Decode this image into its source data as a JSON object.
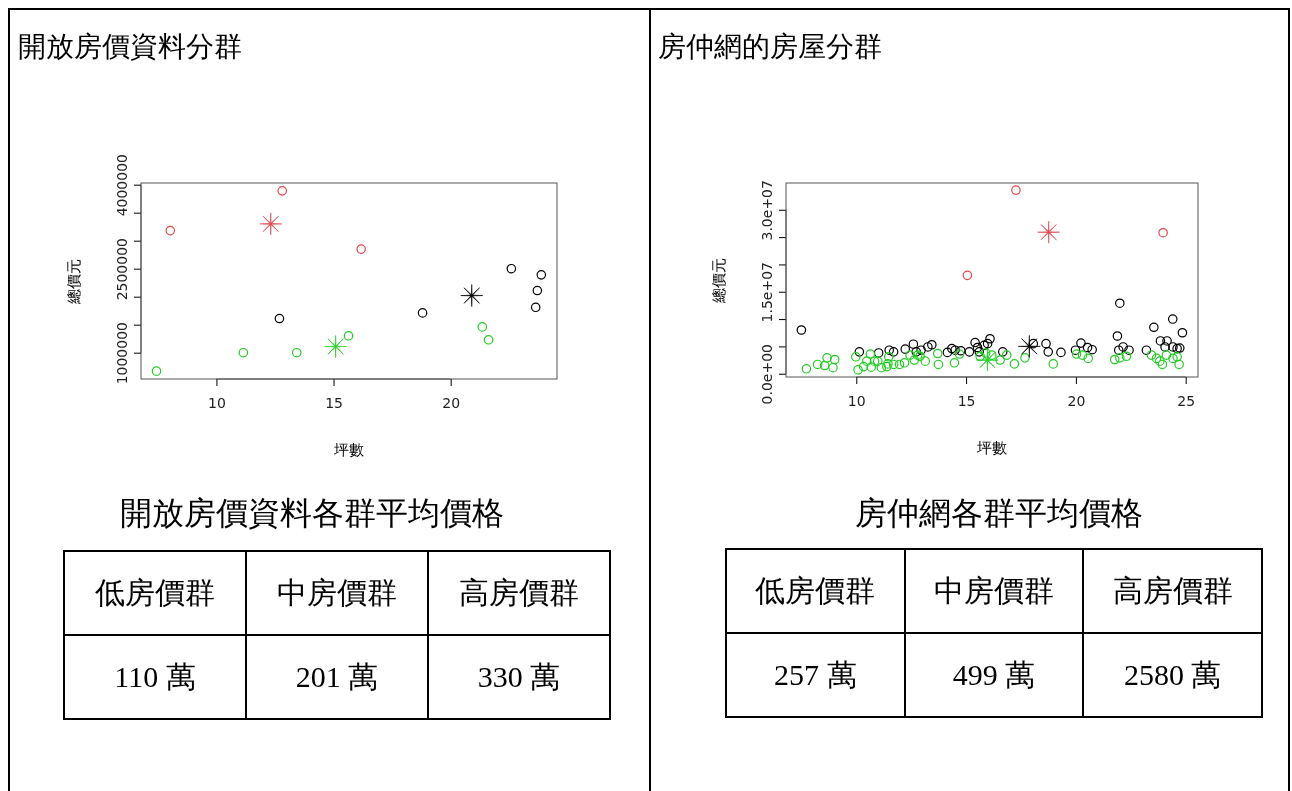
{
  "chart_data": [
    {
      "type": "scatter",
      "title": "開放房價資料分群",
      "xlabel": "坪數",
      "ylabel": "總價元",
      "xlim": [
        6.78,
        24.54
      ],
      "ylim": [
        530000,
        4030000
      ],
      "xticks": [
        10,
        15,
        20
      ],
      "yticks": [
        {
          "value": 1000000,
          "label": "1000000"
        },
        {
          "value": 1500000,
          "label": null
        },
        {
          "value": 2000000,
          "label": null
        },
        {
          "value": 2500000,
          "label": "2500000"
        },
        {
          "value": 3000000,
          "label": null
        },
        {
          "value": 3500000,
          "label": null
        },
        {
          "value": 4000000,
          "label": "4000000"
        }
      ],
      "series": [
        {
          "color": "#e0474c",
          "marker": "circle",
          "x": [
            8.03,
            12.81,
            16.18
          ],
          "values": [
            3180000,
            3890000,
            2850000
          ]
        },
        {
          "color": "#000000",
          "marker": "circle",
          "x": [
            12.69,
            18.8,
            22.59,
            23.87,
            23.7,
            23.63
          ],
          "values": [
            1610000,
            1710000,
            2500000,
            2390000,
            2110000,
            1810000
          ]
        },
        {
          "color": "#22cc22",
          "marker": "circle",
          "x": [
            7.44,
            11.15,
            13.43,
            15.64,
            21.35,
            21.62
          ],
          "values": [
            670000,
            1000000,
            1000000,
            1300000,
            1460000,
            1230000
          ]
        },
        {
          "color": "#e0474c",
          "marker": "star",
          "x": [
            12.32
          ],
          "values": [
            3300000
          ]
        },
        {
          "color": "#000000",
          "marker": "star",
          "x": [
            20.9
          ],
          "values": [
            2020000
          ]
        },
        {
          "color": "#22cc22",
          "marker": "star",
          "x": [
            15.09
          ],
          "values": [
            1110000
          ]
        }
      ]
    },
    {
      "type": "other",
      "title": "開放房價資料各群平均價格",
      "categories": [
        "低房價群",
        "中房價群",
        "高房價群"
      ],
      "annotations": [
        "110 萬",
        "201 萬",
        "330 萬"
      ]
    },
    {
      "type": "scatter",
      "title": "房仲網的房屋分群",
      "xlabel": "坪數",
      "ylabel": "總價元",
      "xlim": [
        6.8,
        25.56
      ],
      "ylim": [
        -600000,
        34900000
      ],
      "xticks": [
        10,
        15,
        20,
        25
      ],
      "yticks": [
        {
          "value": 0,
          "label": "0.0e+00"
        },
        {
          "value": 5000000,
          "label": null
        },
        {
          "value": 10000000,
          "label": null
        },
        {
          "value": 15000000,
          "label": "1.5e+07"
        },
        {
          "value": 20000000,
          "label": null
        },
        {
          "value": 25000000,
          "label": null
        },
        {
          "value": 30000000,
          "label": "3.0e+07"
        }
      ],
      "series": [
        {
          "color": "#e0474c",
          "marker": "circle",
          "x": [
            17.27,
            15.06,
            23.97
          ],
          "values": [
            33600000,
            18000000,
            25800000
          ]
        },
        {
          "color": "#000000",
          "marker": "circle",
          "x": [
            7.5,
            10.14,
            11.02,
            11.5,
            11.7,
            12.23,
            12.6,
            12.73,
            12.95,
            13.26,
            13.44,
            14.15,
            14.35,
            14.5,
            14.76,
            15.15,
            15.41,
            15.52,
            15.6,
            15.82,
            15.98,
            16.09,
            16.67,
            18.06,
            18.64,
            18.74,
            19.32,
            19.98,
            20.23,
            20.53,
            20.74,
            22.0,
            21.89,
            21.95,
            22.15,
            22.42,
            23.21,
            23.55,
            23.85,
            24.15,
            24.06,
            24.41,
            24.42,
            24.61,
            24.73,
            24.85
          ],
          "values": [
            8000000,
            4000000,
            3800000,
            4300000,
            4000000,
            4500000,
            5400000,
            4000000,
            4300000,
            4900000,
            5300000,
            3900000,
            4600000,
            4300000,
            4200000,
            4000000,
            5700000,
            4800000,
            4000000,
            5200000,
            5500000,
            6400000,
            4000000,
            5500000,
            5500000,
            4000000,
            3900000,
            4300000,
            5600000,
            4800000,
            4400000,
            12900000,
            6900000,
            4300000,
            4900000,
            4300000,
            4300000,
            8500000,
            6000000,
            6000000,
            4900000,
            10000000,
            4900000,
            4600000,
            4700000,
            7500000
          ]
        },
        {
          "color": "#22cc22",
          "marker": "circle",
          "x": [
            7.73,
            8.24,
            8.56,
            8.67,
            8.94,
            9.02,
            9.98,
            10.08,
            10.33,
            10.48,
            10.64,
            10.68,
            10.83,
            10.98,
            11.14,
            11.39,
            11.44,
            11.48,
            11.7,
            11.97,
            12.2,
            12.45,
            12.64,
            12.8,
            12.9,
            13.14,
            13.71,
            13.74,
            14.47,
            14.7,
            15.64,
            15.89,
            16.17,
            16.55,
            16.85,
            17.2,
            17.68,
            18.97,
            20.03,
            20.3,
            20.56,
            21.77,
            22.0,
            22.3,
            23.44,
            23.67,
            23.82,
            23.94,
            24.12,
            24.42,
            24.61,
            24.7
          ],
          "values": [
            900000,
            1700000,
            1500000,
            2900000,
            1100000,
            2600000,
            3100000,
            700000,
            1300000,
            2300000,
            3600000,
            1200000,
            2300000,
            2300000,
            1100000,
            1300000,
            1800000,
            3100000,
            1700000,
            1700000,
            2000000,
            3400000,
            2500000,
            3400000,
            3200000,
            2300000,
            3700000,
            1700000,
            2000000,
            3600000,
            3200000,
            3800000,
            3400000,
            2500000,
            3400000,
            1800000,
            2900000,
            1800000,
            3600000,
            3400000,
            2800000,
            2600000,
            2900000,
            3200000,
            3400000,
            2800000,
            2300000,
            1700000,
            3400000,
            2800000,
            3100000,
            1700000
          ]
        },
        {
          "color": "#e0474c",
          "marker": "star",
          "x": [
            18.76
          ],
          "values": [
            25900000
          ]
        },
        {
          "color": "#000000",
          "marker": "star",
          "x": [
            17.88
          ],
          "values": [
            5000000
          ]
        },
        {
          "color": "#22cc22",
          "marker": "star",
          "x": [
            15.97
          ],
          "values": [
            2500000
          ]
        }
      ]
    },
    {
      "type": "other",
      "title": "房仲網各群平均價格",
      "categories": [
        "低房價群",
        "中房價群",
        "高房價群"
      ],
      "annotations": [
        "257 萬",
        "499 萬",
        "2580 萬"
      ]
    }
  ]
}
